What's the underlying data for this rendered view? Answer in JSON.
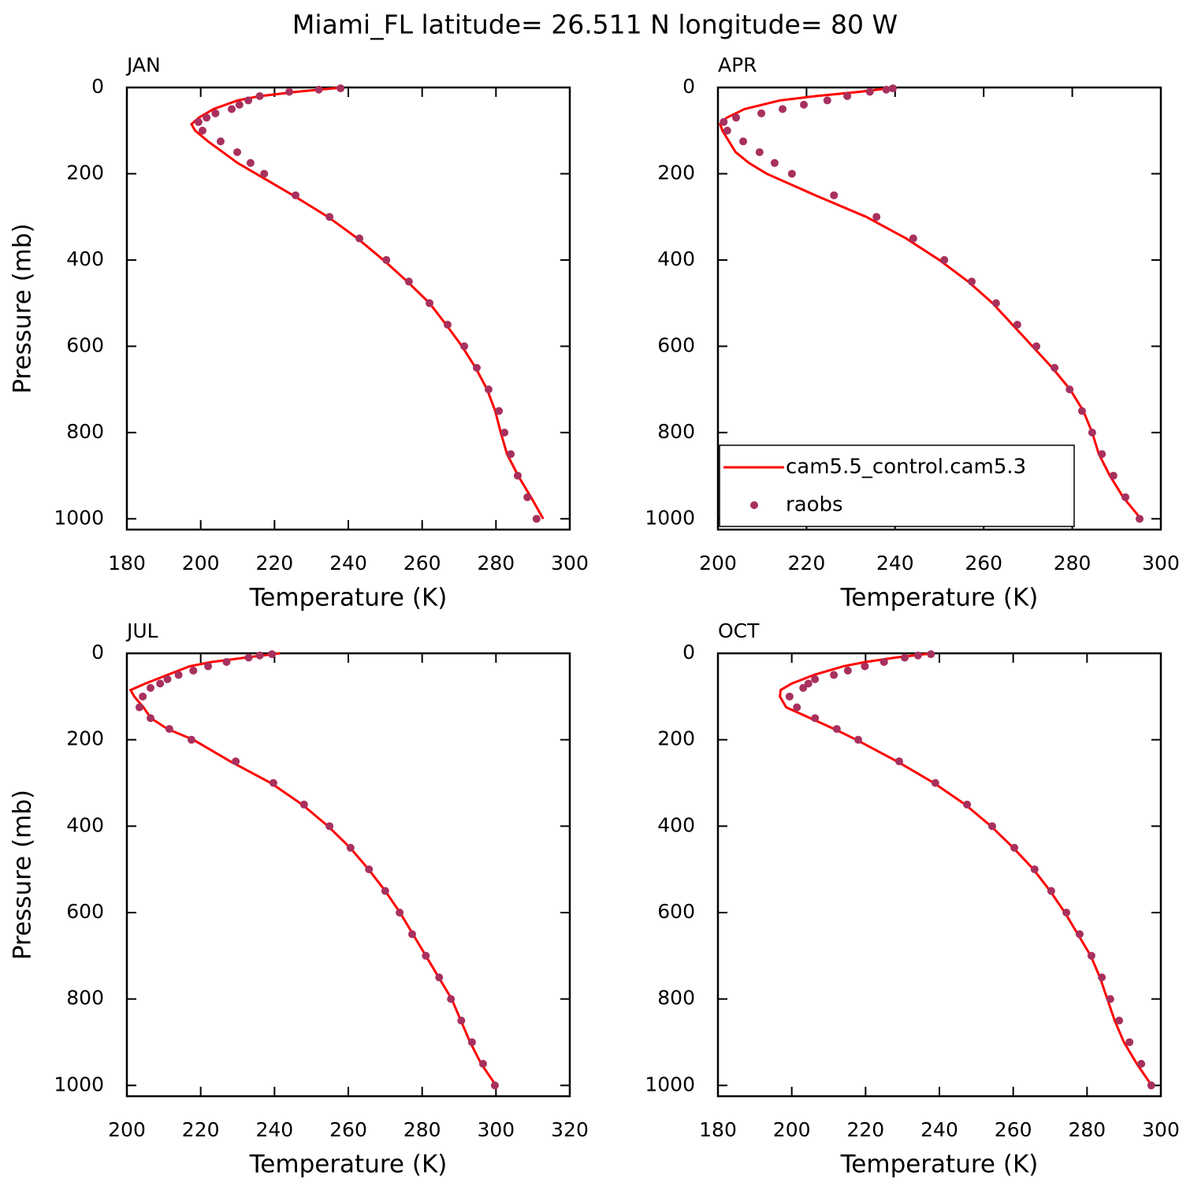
{
  "title": "Miami_FL  latitude= 26.511 N longitude= 80 W",
  "chart_data": [
    {
      "type": "profile",
      "title": "JAN",
      "xlabel": "Temperature (K)",
      "ylabel": "Pressure (mb)",
      "xlim": [
        180,
        300
      ],
      "xticks": [
        180,
        200,
        220,
        240,
        260,
        280,
        300
      ],
      "ylim": [
        1025,
        0
      ],
      "yticks": [
        0,
        200,
        400,
        600,
        800,
        1000
      ],
      "series": [
        {
          "name": "cam5.5_control.cam5.3",
          "color": "#ff0000",
          "style": "line",
          "x": [
            238.5,
            226,
            216,
            210,
            203.5,
            199.5,
            197.5,
            198.5,
            202,
            206,
            210,
            215,
            225,
            234.5,
            242.5,
            249.5,
            256,
            262,
            266.5,
            270.8,
            274.5,
            277.6,
            279.8,
            281.3,
            283,
            286,
            289.5,
            292.8
          ],
          "y": [
            0,
            10,
            20,
            30,
            50,
            70,
            85,
            100,
            125,
            150,
            175,
            200,
            250,
            300,
            350,
            400,
            450,
            500,
            550,
            600,
            650,
            700,
            750,
            800,
            850,
            900,
            950,
            1000
          ]
        },
        {
          "name": "raobs",
          "color": "#a8305e",
          "style": "dots",
          "x": [
            237.9,
            232,
            224,
            216,
            212.9,
            210.5,
            208.4,
            204,
            201.6,
            199.4,
            200.5,
            205.4,
            209.9,
            213.5,
            217.2,
            225.7,
            234.9,
            243,
            250.3,
            256.4,
            262,
            266.9,
            271.4,
            274.8,
            278,
            280.8,
            282.3,
            284,
            285.9,
            288.5,
            291
          ],
          "y": [
            2,
            5,
            10,
            20,
            30,
            40,
            50,
            60,
            70,
            80,
            100,
            125,
            150,
            175,
            200,
            250,
            300,
            350,
            400,
            450,
            500,
            550,
            600,
            650,
            700,
            750,
            800,
            850,
            900,
            950,
            1000
          ]
        }
      ]
    },
    {
      "type": "profile",
      "title": "APR",
      "xlabel": "Temperature (K)",
      "legend": "lower left",
      "xlim": [
        200,
        300
      ],
      "xticks": [
        200,
        220,
        240,
        260,
        280,
        300
      ],
      "ylim": [
        1025,
        0
      ],
      "yticks": [
        0,
        200,
        400,
        600,
        800,
        1000
      ],
      "series": [
        {
          "name": "cam5.5_control.cam5.3",
          "color": "#ff0000",
          "style": "line",
          "x": [
            240,
            232,
            222,
            214,
            206,
            202,
            200.5,
            201,
            202.5,
            204,
            207,
            211,
            222,
            233.5,
            242.5,
            250,
            256.5,
            262,
            266.5,
            271,
            275.5,
            279.5,
            282.5,
            284.5,
            286,
            288.5,
            291.5,
            295.5
          ],
          "y": [
            0,
            10,
            20,
            30,
            50,
            70,
            85,
            100,
            125,
            150,
            175,
            200,
            250,
            300,
            350,
            400,
            450,
            500,
            550,
            600,
            650,
            700,
            750,
            800,
            850,
            900,
            950,
            1000
          ]
        },
        {
          "name": "raobs",
          "color": "#a8305e",
          "style": "dots",
          "x": [
            239.5,
            238,
            234.3,
            229.2,
            224.7,
            219.4,
            214.6,
            209.8,
            204.1,
            201.3,
            202.1,
            205.7,
            209.4,
            212.8,
            216.7,
            226.2,
            235.8,
            244.1,
            251.1,
            257.3,
            262.8,
            267.6,
            271.9,
            276,
            279.4,
            282.2,
            284.5,
            286.7,
            289.3,
            292,
            295.2
          ],
          "y": [
            2,
            5,
            10,
            20,
            30,
            40,
            50,
            60,
            70,
            80,
            100,
            125,
            150,
            175,
            200,
            250,
            300,
            350,
            400,
            450,
            500,
            550,
            600,
            650,
            700,
            750,
            800,
            850,
            900,
            950,
            1000
          ]
        }
      ]
    },
    {
      "type": "profile",
      "title": "JUL",
      "xlabel": "Temperature (K)",
      "ylabel": "Pressure (mb)",
      "xlim": [
        200,
        320
      ],
      "xticks": [
        200,
        220,
        240,
        260,
        280,
        300,
        320
      ],
      "ylim": [
        1025,
        0
      ],
      "yticks": [
        0,
        200,
        400,
        600,
        800,
        1000
      ],
      "series": [
        {
          "name": "cam5.5_control.cam5.3",
          "color": "#ff0000",
          "style": "line",
          "x": [
            241.5,
            232,
            223,
            217,
            211,
            205,
            201,
            202,
            204.5,
            206.5,
            211,
            218,
            228,
            239,
            247.5,
            254.5,
            260.5,
            265.5,
            270,
            274,
            277.5,
            281,
            284.5,
            288,
            290.5,
            293,
            296,
            300
          ],
          "y": [
            0,
            10,
            20,
            30,
            50,
            70,
            85,
            100,
            125,
            150,
            175,
            200,
            250,
            300,
            350,
            400,
            450,
            500,
            550,
            600,
            650,
            700,
            750,
            800,
            850,
            900,
            950,
            1000
          ]
        },
        {
          "name": "raobs",
          "color": "#a8305e",
          "style": "dots",
          "x": [
            239.3,
            236,
            233,
            227,
            222,
            218,
            214,
            211,
            209,
            206.4,
            204.3,
            203.4,
            206.4,
            211.5,
            217.5,
            229.5,
            239.7,
            248,
            254.9,
            260.6,
            265.6,
            270,
            273.9,
            277.3,
            281,
            284.6,
            287.8,
            290.6,
            293.5,
            296.5,
            299.7
          ],
          "y": [
            2,
            5,
            10,
            20,
            30,
            40,
            50,
            60,
            70,
            80,
            100,
            125,
            150,
            175,
            200,
            250,
            300,
            350,
            400,
            450,
            500,
            550,
            600,
            650,
            700,
            750,
            800,
            850,
            900,
            950,
            1000
          ]
        }
      ]
    },
    {
      "type": "profile",
      "title": "OCT",
      "xlabel": "Temperature (K)",
      "xlim": [
        180,
        300
      ],
      "xticks": [
        180,
        200,
        220,
        240,
        260,
        280,
        300
      ],
      "ylim": [
        1025,
        0
      ],
      "yticks": [
        0,
        200,
        400,
        600,
        800,
        1000
      ],
      "series": [
        {
          "name": "cam5.5_control.cam5.3",
          "color": "#ff0000",
          "style": "line",
          "x": [
            238,
            228,
            220,
            214,
            206,
            200,
            197,
            196.8,
            198.5,
            205,
            211.5,
            217.5,
            228.5,
            238.5,
            247,
            254,
            260,
            265.5,
            270,
            274,
            277.5,
            281,
            283.5,
            285.5,
            287.5,
            290,
            293.5,
            297.5
          ],
          "y": [
            0,
            10,
            20,
            30,
            50,
            70,
            85,
            100,
            125,
            150,
            175,
            200,
            250,
            300,
            350,
            400,
            450,
            500,
            550,
            600,
            650,
            700,
            750,
            800,
            850,
            900,
            950,
            1000
          ]
        },
        {
          "name": "raobs",
          "color": "#a8305e",
          "style": "dots",
          "x": [
            237.7,
            234.2,
            230.6,
            225,
            219.8,
            215.2,
            211.4,
            206.3,
            204.5,
            203.1,
            199.4,
            201.4,
            206.3,
            212.2,
            218,
            229.1,
            238.9,
            247.5,
            254.3,
            260.3,
            265.8,
            270.3,
            274.4,
            278,
            281.2,
            284,
            286.3,
            288.7,
            291.5,
            294.7,
            297.4
          ],
          "y": [
            2,
            5,
            10,
            20,
            30,
            40,
            50,
            60,
            70,
            80,
            100,
            125,
            150,
            175,
            200,
            250,
            300,
            350,
            400,
            450,
            500,
            550,
            600,
            650,
            700,
            750,
            800,
            850,
            900,
            950,
            1000
          ]
        }
      ]
    }
  ]
}
